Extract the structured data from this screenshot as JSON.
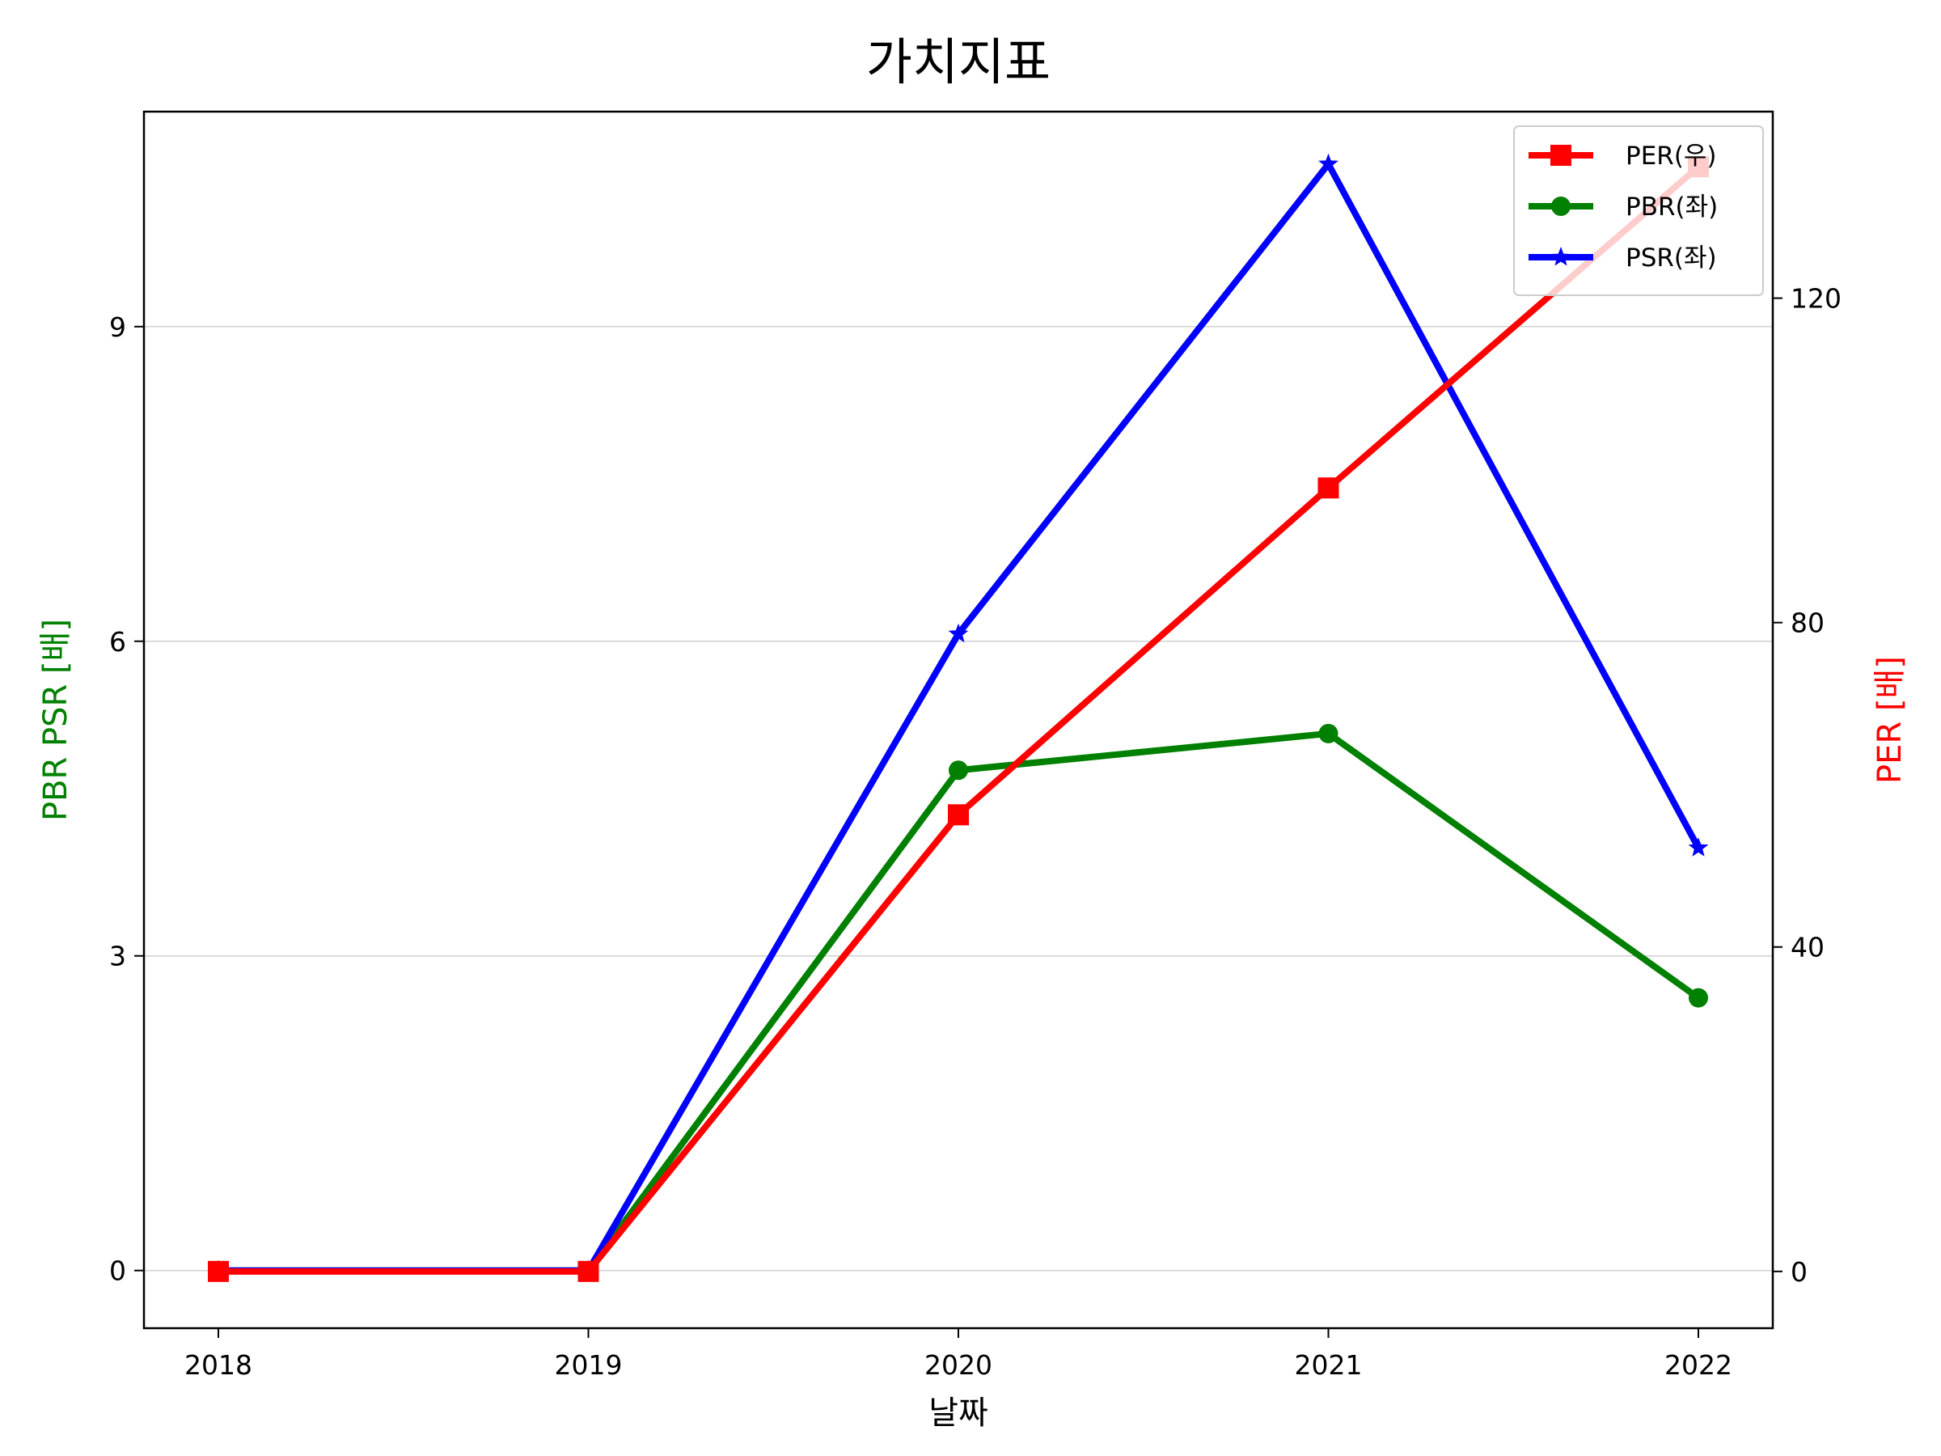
{
  "chart_data": {
    "type": "line",
    "title": "가치지표",
    "xlabel": "날짜",
    "ylabel_left": "PBR PSR [배]",
    "ylabel_right": "PER [배]",
    "categories": [
      "2018",
      "2019",
      "2020",
      "2021",
      "2022"
    ],
    "y_left": {
      "lim": [
        -0.55,
        11.05
      ],
      "ticks": [
        0,
        3,
        6,
        9
      ]
    },
    "y_right": {
      "lim": [
        -7.0,
        143.0
      ],
      "ticks": [
        0,
        40,
        80,
        120
      ]
    },
    "grid": "horizontal, left axis",
    "legend_position": "top-right",
    "series": [
      {
        "name": "PER(우)",
        "axis": "right",
        "color": "#ff0000",
        "marker": "square",
        "values": [
          0,
          0,
          56.3,
          96.6,
          136.2
        ]
      },
      {
        "name": "PBR(좌)",
        "axis": "left",
        "color": "#008000",
        "marker": "circle",
        "values": [
          0,
          0,
          4.77,
          5.12,
          2.6
        ]
      },
      {
        "name": "PSR(좌)",
        "axis": "left",
        "color": "#0000ff",
        "marker": "star",
        "values": [
          0,
          0,
          6.07,
          10.55,
          4.03
        ]
      }
    ],
    "axis_label_colors": {
      "left": "#008000",
      "right": "#ff0000"
    }
  }
}
